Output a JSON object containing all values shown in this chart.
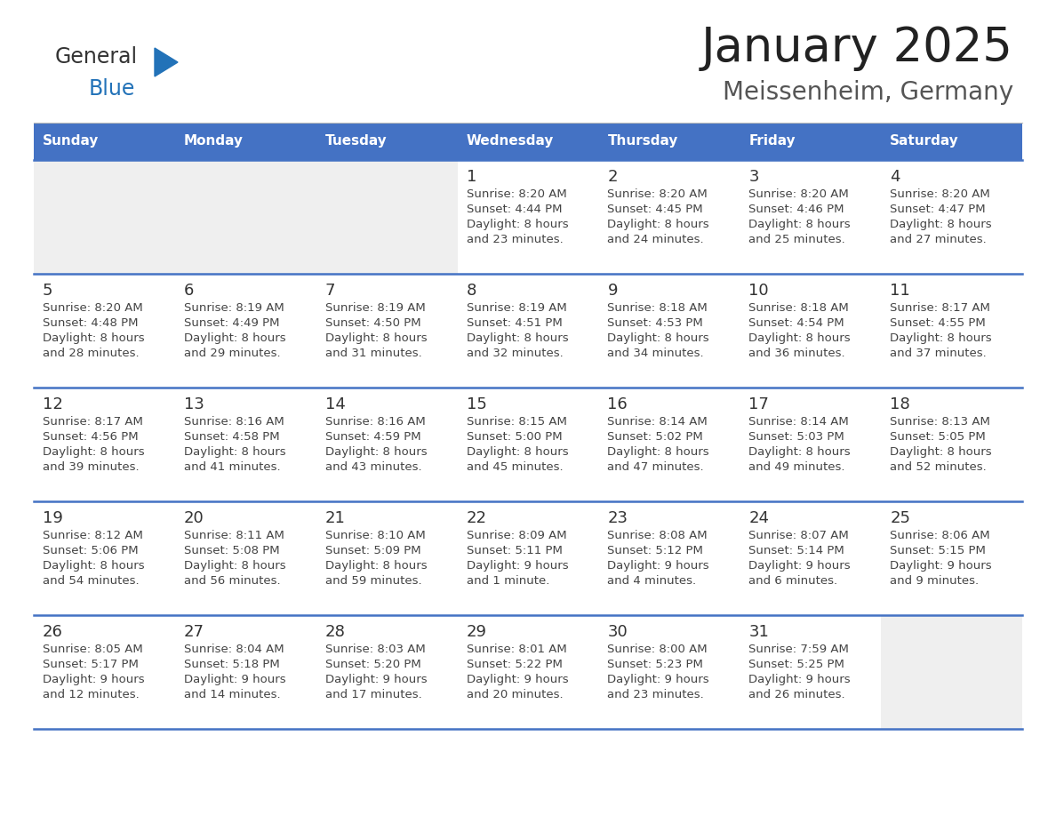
{
  "title": "January 2025",
  "subtitle": "Meissenheim, Germany",
  "days_of_week": [
    "Sunday",
    "Monday",
    "Tuesday",
    "Wednesday",
    "Thursday",
    "Friday",
    "Saturday"
  ],
  "header_bg": "#4472C4",
  "header_text_color": "#FFFFFF",
  "cell_bg_white": "#FFFFFF",
  "cell_bg_gray": "#EFEFEF",
  "text_color": "#444444",
  "day_num_color": "#333333",
  "separator_color": "#4472C4",
  "logo_general_color": "#333333",
  "logo_blue_color": "#2272B8",
  "title_color": "#222222",
  "weeks": [
    [
      {
        "day": null,
        "sunrise": null,
        "sunset": null,
        "daylight_h": null,
        "daylight_m": null
      },
      {
        "day": null,
        "sunrise": null,
        "sunset": null,
        "daylight_h": null,
        "daylight_m": null
      },
      {
        "day": null,
        "sunrise": null,
        "sunset": null,
        "daylight_h": null,
        "daylight_m": null
      },
      {
        "day": 1,
        "sunrise": "8:20 AM",
        "sunset": "4:44 PM",
        "daylight_h": "8 hours",
        "daylight_m": "and 23 minutes."
      },
      {
        "day": 2,
        "sunrise": "8:20 AM",
        "sunset": "4:45 PM",
        "daylight_h": "8 hours",
        "daylight_m": "and 24 minutes."
      },
      {
        "day": 3,
        "sunrise": "8:20 AM",
        "sunset": "4:46 PM",
        "daylight_h": "8 hours",
        "daylight_m": "and 25 minutes."
      },
      {
        "day": 4,
        "sunrise": "8:20 AM",
        "sunset": "4:47 PM",
        "daylight_h": "8 hours",
        "daylight_m": "and 27 minutes."
      }
    ],
    [
      {
        "day": 5,
        "sunrise": "8:20 AM",
        "sunset": "4:48 PM",
        "daylight_h": "8 hours",
        "daylight_m": "and 28 minutes."
      },
      {
        "day": 6,
        "sunrise": "8:19 AM",
        "sunset": "4:49 PM",
        "daylight_h": "8 hours",
        "daylight_m": "and 29 minutes."
      },
      {
        "day": 7,
        "sunrise": "8:19 AM",
        "sunset": "4:50 PM",
        "daylight_h": "8 hours",
        "daylight_m": "and 31 minutes."
      },
      {
        "day": 8,
        "sunrise": "8:19 AM",
        "sunset": "4:51 PM",
        "daylight_h": "8 hours",
        "daylight_m": "and 32 minutes."
      },
      {
        "day": 9,
        "sunrise": "8:18 AM",
        "sunset": "4:53 PM",
        "daylight_h": "8 hours",
        "daylight_m": "and 34 minutes."
      },
      {
        "day": 10,
        "sunrise": "8:18 AM",
        "sunset": "4:54 PM",
        "daylight_h": "8 hours",
        "daylight_m": "and 36 minutes."
      },
      {
        "day": 11,
        "sunrise": "8:17 AM",
        "sunset": "4:55 PM",
        "daylight_h": "8 hours",
        "daylight_m": "and 37 minutes."
      }
    ],
    [
      {
        "day": 12,
        "sunrise": "8:17 AM",
        "sunset": "4:56 PM",
        "daylight_h": "8 hours",
        "daylight_m": "and 39 minutes."
      },
      {
        "day": 13,
        "sunrise": "8:16 AM",
        "sunset": "4:58 PM",
        "daylight_h": "8 hours",
        "daylight_m": "and 41 minutes."
      },
      {
        "day": 14,
        "sunrise": "8:16 AM",
        "sunset": "4:59 PM",
        "daylight_h": "8 hours",
        "daylight_m": "and 43 minutes."
      },
      {
        "day": 15,
        "sunrise": "8:15 AM",
        "sunset": "5:00 PM",
        "daylight_h": "8 hours",
        "daylight_m": "and 45 minutes."
      },
      {
        "day": 16,
        "sunrise": "8:14 AM",
        "sunset": "5:02 PM",
        "daylight_h": "8 hours",
        "daylight_m": "and 47 minutes."
      },
      {
        "day": 17,
        "sunrise": "8:14 AM",
        "sunset": "5:03 PM",
        "daylight_h": "8 hours",
        "daylight_m": "and 49 minutes."
      },
      {
        "day": 18,
        "sunrise": "8:13 AM",
        "sunset": "5:05 PM",
        "daylight_h": "8 hours",
        "daylight_m": "and 52 minutes."
      }
    ],
    [
      {
        "day": 19,
        "sunrise": "8:12 AM",
        "sunset": "5:06 PM",
        "daylight_h": "8 hours",
        "daylight_m": "and 54 minutes."
      },
      {
        "day": 20,
        "sunrise": "8:11 AM",
        "sunset": "5:08 PM",
        "daylight_h": "8 hours",
        "daylight_m": "and 56 minutes."
      },
      {
        "day": 21,
        "sunrise": "8:10 AM",
        "sunset": "5:09 PM",
        "daylight_h": "8 hours",
        "daylight_m": "and 59 minutes."
      },
      {
        "day": 22,
        "sunrise": "8:09 AM",
        "sunset": "5:11 PM",
        "daylight_h": "9 hours",
        "daylight_m": "and 1 minute."
      },
      {
        "day": 23,
        "sunrise": "8:08 AM",
        "sunset": "5:12 PM",
        "daylight_h": "9 hours",
        "daylight_m": "and 4 minutes."
      },
      {
        "day": 24,
        "sunrise": "8:07 AM",
        "sunset": "5:14 PM",
        "daylight_h": "9 hours",
        "daylight_m": "and 6 minutes."
      },
      {
        "day": 25,
        "sunrise": "8:06 AM",
        "sunset": "5:15 PM",
        "daylight_h": "9 hours",
        "daylight_m": "and 9 minutes."
      }
    ],
    [
      {
        "day": 26,
        "sunrise": "8:05 AM",
        "sunset": "5:17 PM",
        "daylight_h": "9 hours",
        "daylight_m": "and 12 minutes."
      },
      {
        "day": 27,
        "sunrise": "8:04 AM",
        "sunset": "5:18 PM",
        "daylight_h": "9 hours",
        "daylight_m": "and 14 minutes."
      },
      {
        "day": 28,
        "sunrise": "8:03 AM",
        "sunset": "5:20 PM",
        "daylight_h": "9 hours",
        "daylight_m": "and 17 minutes."
      },
      {
        "day": 29,
        "sunrise": "8:01 AM",
        "sunset": "5:22 PM",
        "daylight_h": "9 hours",
        "daylight_m": "and 20 minutes."
      },
      {
        "day": 30,
        "sunrise": "8:00 AM",
        "sunset": "5:23 PM",
        "daylight_h": "9 hours",
        "daylight_m": "and 23 minutes."
      },
      {
        "day": 31,
        "sunrise": "7:59 AM",
        "sunset": "5:25 PM",
        "daylight_h": "9 hours",
        "daylight_m": "and 26 minutes."
      },
      {
        "day": null,
        "sunrise": null,
        "sunset": null,
        "daylight_h": null,
        "daylight_m": null
      }
    ]
  ]
}
